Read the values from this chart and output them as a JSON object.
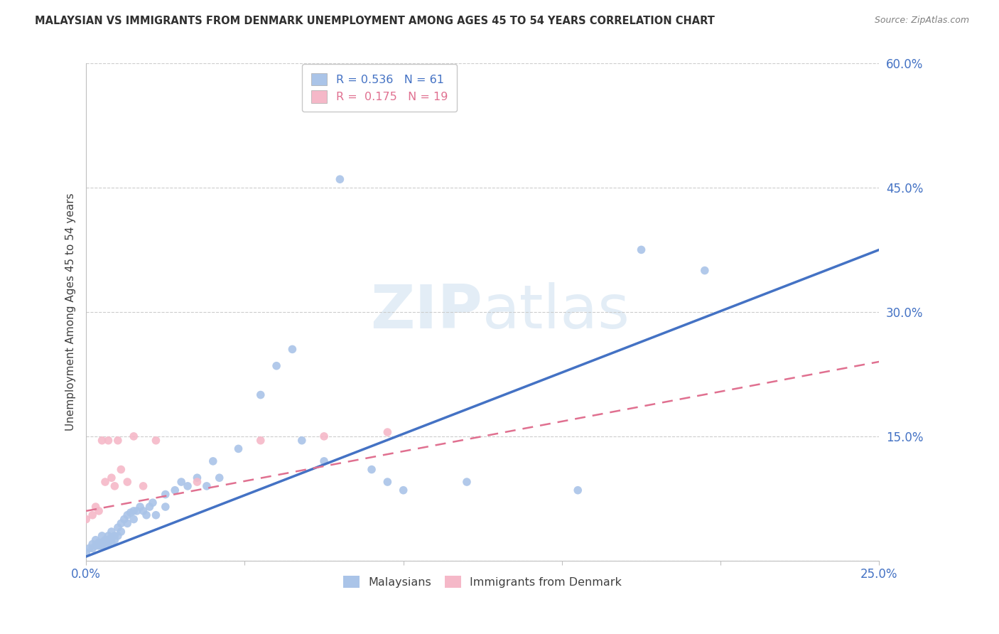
{
  "title": "MALAYSIAN VS IMMIGRANTS FROM DENMARK UNEMPLOYMENT AMONG AGES 45 TO 54 YEARS CORRELATION CHART",
  "source": "Source: ZipAtlas.com",
  "ylabel": "Unemployment Among Ages 45 to 54 years",
  "xlim": [
    0.0,
    0.25
  ],
  "ylim": [
    0.0,
    0.6
  ],
  "watermark_part1": "ZIP",
  "watermark_part2": "atlas",
  "legend_r_labels": [
    "R = 0.536",
    "R =  0.175"
  ],
  "legend_n_labels": [
    "N = 61",
    "N = 19"
  ],
  "legend_labels_bottom": [
    "Malaysians",
    "Immigrants from Denmark"
  ],
  "malaysian_x": [
    0.0,
    0.001,
    0.002,
    0.002,
    0.003,
    0.003,
    0.004,
    0.004,
    0.005,
    0.005,
    0.005,
    0.006,
    0.006,
    0.007,
    0.007,
    0.007,
    0.008,
    0.008,
    0.008,
    0.009,
    0.009,
    0.01,
    0.01,
    0.011,
    0.011,
    0.012,
    0.013,
    0.013,
    0.014,
    0.015,
    0.015,
    0.016,
    0.017,
    0.018,
    0.019,
    0.02,
    0.021,
    0.022,
    0.025,
    0.025,
    0.028,
    0.03,
    0.032,
    0.035,
    0.038,
    0.04,
    0.042,
    0.048,
    0.055,
    0.06,
    0.065,
    0.068,
    0.075,
    0.08,
    0.09,
    0.095,
    0.1,
    0.12,
    0.155,
    0.175,
    0.195
  ],
  "malaysian_y": [
    0.01,
    0.015,
    0.02,
    0.015,
    0.025,
    0.018,
    0.022,
    0.018,
    0.03,
    0.022,
    0.018,
    0.025,
    0.018,
    0.03,
    0.025,
    0.022,
    0.035,
    0.028,
    0.022,
    0.03,
    0.025,
    0.04,
    0.03,
    0.045,
    0.035,
    0.05,
    0.055,
    0.045,
    0.058,
    0.06,
    0.05,
    0.06,
    0.065,
    0.06,
    0.055,
    0.065,
    0.07,
    0.055,
    0.08,
    0.065,
    0.085,
    0.095,
    0.09,
    0.1,
    0.09,
    0.12,
    0.1,
    0.135,
    0.2,
    0.235,
    0.255,
    0.145,
    0.12,
    0.46,
    0.11,
    0.095,
    0.085,
    0.095,
    0.085,
    0.375,
    0.35
  ],
  "denmark_x": [
    0.0,
    0.002,
    0.003,
    0.004,
    0.005,
    0.006,
    0.007,
    0.008,
    0.009,
    0.01,
    0.011,
    0.013,
    0.015,
    0.018,
    0.022,
    0.035,
    0.055,
    0.075,
    0.095
  ],
  "denmark_y": [
    0.05,
    0.055,
    0.065,
    0.06,
    0.145,
    0.095,
    0.145,
    0.1,
    0.09,
    0.145,
    0.11,
    0.095,
    0.15,
    0.09,
    0.145,
    0.095,
    0.145,
    0.15,
    0.155
  ],
  "blue_line_x": [
    0.0,
    0.25
  ],
  "blue_line_y": [
    0.005,
    0.375
  ],
  "pink_line_x": [
    0.0,
    0.25
  ],
  "pink_line_y": [
    0.06,
    0.24
  ],
  "dot_size": 70,
  "blue_dot_color": "#aac4e8",
  "pink_dot_color": "#f5b8c8",
  "blue_line_color": "#4472c4",
  "pink_line_color": "#e07090",
  "title_color": "#303030",
  "axis_color": "#4472c4",
  "grid_color": "#cccccc",
  "background_color": "#ffffff"
}
